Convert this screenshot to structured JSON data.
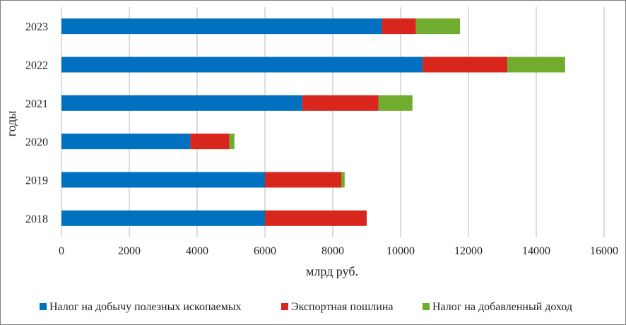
{
  "chart_data": {
    "type": "bar",
    "orientation": "horizontal",
    "stacked": true,
    "categories": [
      "2018",
      "2019",
      "2020",
      "2021",
      "2022",
      "2023"
    ],
    "series": [
      {
        "name": "Налог на добычу полезных ископаемых",
        "color": "#0070c0",
        "values": [
          6000,
          6000,
          3800,
          7100,
          10650,
          9450
        ]
      },
      {
        "name": "Экспортная пошлина",
        "color": "#d9261c",
        "values": [
          3000,
          2250,
          1150,
          2250,
          2500,
          1000
        ]
      },
      {
        "name": "Налог на добавленный доход",
        "color": "#70ad2f",
        "values": [
          0,
          100,
          150,
          1000,
          1700,
          1300
        ]
      }
    ],
    "xlabel": "млрд руб.",
    "ylabel": "годы",
    "xlim": [
      0,
      16000
    ],
    "xticks": [
      "0",
      "2000",
      "4000",
      "6000",
      "8000",
      "10000",
      "12000",
      "14000",
      "16000"
    ],
    "grid": "vertical",
    "legend_position": "bottom"
  }
}
